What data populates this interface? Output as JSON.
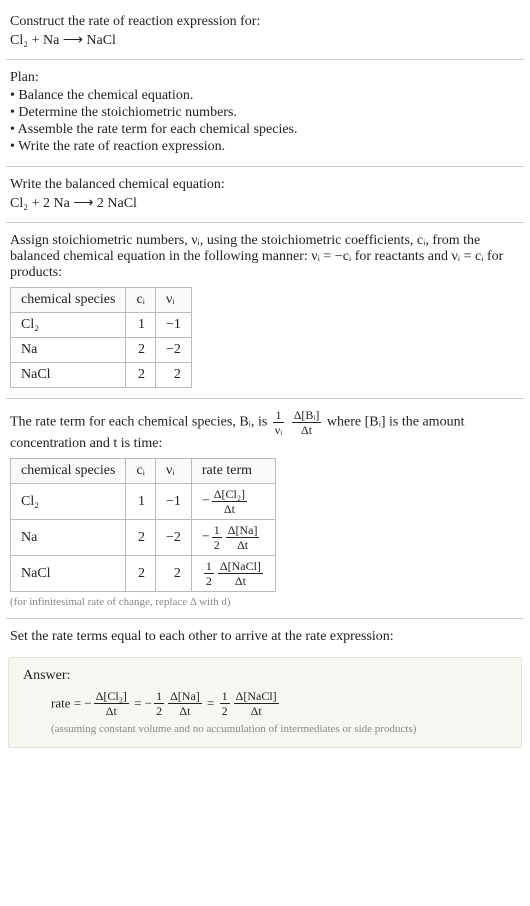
{
  "header": {
    "prompt": "Construct the rate of reaction expression for:",
    "unbalanced": "Cl₂ + Na ⟶ NaCl"
  },
  "plan": {
    "title": "Plan:",
    "items": [
      "• Balance the chemical equation.",
      "• Determine the stoichiometric numbers.",
      "• Assemble the rate term for each chemical species.",
      "• Write the rate of reaction expression."
    ]
  },
  "balanced": {
    "title": "Write the balanced chemical equation:",
    "equation": "Cl₂ + 2 Na ⟶ 2 NaCl"
  },
  "stoich_explain": "Assign stoichiometric numbers, νᵢ, using the stoichiometric coefficients, cᵢ, from the balanced chemical equation in the following manner: νᵢ = −cᵢ for reactants and νᵢ = cᵢ for products:",
  "stoich_table": {
    "headers": [
      "chemical species",
      "cᵢ",
      "νᵢ"
    ],
    "rows": [
      {
        "species": "Cl₂",
        "c": "1",
        "nu": "−1"
      },
      {
        "species": "Na",
        "c": "2",
        "nu": "−2"
      },
      {
        "species": "NaCl",
        "c": "2",
        "nu": "2"
      }
    ]
  },
  "rate_term_intro_a": "The rate term for each chemical species, Bᵢ, is ",
  "rate_term_intro_b": " where [Bᵢ] is the amount concentration and t is time:",
  "rate_frac": {
    "coef_num": "1",
    "coef_den": "νᵢ",
    "d_num": "Δ[Bᵢ]",
    "d_den": "Δt"
  },
  "rate_table": {
    "headers": [
      "chemical species",
      "cᵢ",
      "νᵢ",
      "rate term"
    ],
    "rows": [
      {
        "species": "Cl₂",
        "c": "1",
        "nu": "−1",
        "sign": "−",
        "coef_num": "",
        "coef_den": "",
        "d_num": "Δ[Cl₂]",
        "d_den": "Δt"
      },
      {
        "species": "Na",
        "c": "2",
        "nu": "−2",
        "sign": "−",
        "coef_num": "1",
        "coef_den": "2",
        "d_num": "Δ[Na]",
        "d_den": "Δt"
      },
      {
        "species": "NaCl",
        "c": "2",
        "nu": "2",
        "sign": "",
        "coef_num": "1",
        "coef_den": "2",
        "d_num": "Δ[NaCl]",
        "d_den": "Δt"
      }
    ],
    "footnote": "(for infinitesimal rate of change, replace Δ with d)"
  },
  "final_title": "Set the rate terms equal to each other to arrive at the rate expression:",
  "answer": {
    "label": "Answer:",
    "prefix": "rate = ",
    "terms": [
      {
        "sign": "−",
        "coef_num": "",
        "coef_den": "",
        "d_num": "Δ[Cl₂]",
        "d_den": "Δt"
      },
      {
        "sign": "−",
        "coef_num": "1",
        "coef_den": "2",
        "d_num": "Δ[Na]",
        "d_den": "Δt"
      },
      {
        "sign": "",
        "coef_num": "1",
        "coef_den": "2",
        "d_num": "Δ[NaCl]",
        "d_den": "Δt"
      }
    ],
    "note": "(assuming constant volume and no accumulation of intermediates or side products)"
  },
  "colors": {
    "text": "#222222",
    "rule": "#cccccc",
    "table_border": "#bbbbbb",
    "note": "#888888",
    "answer_bg": "#f7f7f1",
    "answer_border": "#e4e4d8"
  }
}
